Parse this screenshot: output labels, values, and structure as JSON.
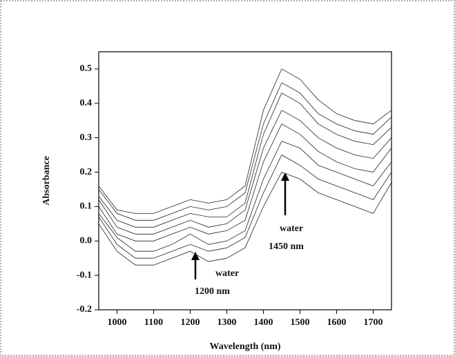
{
  "chart_data": {
    "type": "line",
    "x_label": "Wavelength (nm)",
    "y_label": "Absorbance",
    "x": [
      950,
      1000,
      1050,
      1100,
      1150,
      1200,
      1250,
      1300,
      1350,
      1400,
      1450,
      1500,
      1550,
      1600,
      1650,
      1700,
      1750
    ],
    "series": [
      {
        "color": "#222222",
        "values": [
          0.05,
          -0.03,
          -0.07,
          -0.07,
          -0.05,
          -0.03,
          -0.06,
          -0.05,
          -0.02,
          0.1,
          0.2,
          0.18,
          0.14,
          0.12,
          0.1,
          0.08,
          0.17
        ]
      },
      {
        "color": "#222222",
        "values": [
          0.07,
          -0.01,
          -0.05,
          -0.05,
          -0.03,
          -0.01,
          -0.03,
          -0.02,
          0.01,
          0.14,
          0.25,
          0.22,
          0.18,
          0.16,
          0.14,
          0.12,
          0.2
        ]
      },
      {
        "color": "#222222",
        "values": [
          0.08,
          0.01,
          -0.03,
          -0.03,
          -0.01,
          0.02,
          -0.01,
          0.0,
          0.03,
          0.18,
          0.29,
          0.27,
          0.22,
          0.2,
          0.18,
          0.16,
          0.23
        ]
      },
      {
        "color": "#222222",
        "values": [
          0.1,
          0.02,
          0.0,
          0.0,
          0.02,
          0.04,
          0.02,
          0.03,
          0.06,
          0.23,
          0.34,
          0.31,
          0.26,
          0.23,
          0.21,
          0.2,
          0.27
        ]
      },
      {
        "color": "#222222",
        "values": [
          0.12,
          0.04,
          0.02,
          0.02,
          0.04,
          0.06,
          0.04,
          0.05,
          0.09,
          0.27,
          0.38,
          0.35,
          0.3,
          0.27,
          0.25,
          0.24,
          0.3
        ]
      },
      {
        "color": "#222222",
        "values": [
          0.13,
          0.06,
          0.04,
          0.04,
          0.06,
          0.08,
          0.07,
          0.07,
          0.11,
          0.31,
          0.43,
          0.4,
          0.34,
          0.31,
          0.29,
          0.28,
          0.33
        ]
      },
      {
        "color": "#222222",
        "values": [
          0.15,
          0.08,
          0.06,
          0.06,
          0.08,
          0.1,
          0.09,
          0.1,
          0.14,
          0.34,
          0.46,
          0.43,
          0.37,
          0.34,
          0.32,
          0.31,
          0.36
        ]
      },
      {
        "color": "#222222",
        "values": [
          0.16,
          0.09,
          0.08,
          0.08,
          0.1,
          0.12,
          0.11,
          0.12,
          0.16,
          0.38,
          0.5,
          0.47,
          0.41,
          0.37,
          0.35,
          0.34,
          0.38
        ]
      }
    ],
    "xlim": [
      950,
      1750
    ],
    "ylim": [
      -0.2,
      0.55
    ],
    "xticks": [
      1000,
      1100,
      1200,
      1300,
      1400,
      1500,
      1600,
      1700
    ],
    "yticks": [
      -0.2,
      -0.1,
      {
        "value": 0,
        "label": "0.0"
      },
      0.1,
      0.2,
      0.3,
      0.4,
      0.5
    ],
    "annotations": [
      [
        "water",
        "1200 nm"
      ],
      [
        "water",
        "1450 nm"
      ]
    ]
  }
}
